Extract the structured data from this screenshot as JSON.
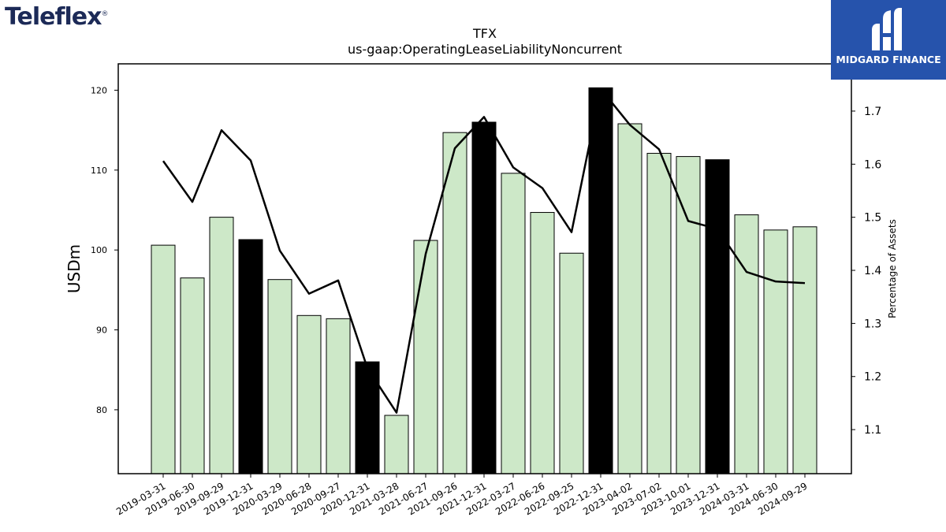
{
  "logos": {
    "left_brand": "Teleflex",
    "left_mark": "®",
    "right_brand": "MIDGARD FINANCE",
    "right_icon": "midgard-m-icon",
    "right_bg": "#2653ac",
    "left_color": "#1c2a57"
  },
  "chart_data": {
    "type": "bar",
    "title": "TFX",
    "subtitle": "us-gaap:OperatingLeaseLiabilityNoncurrent",
    "ylabel": "USDm",
    "y2label": "Percentage of Assets",
    "categories": [
      "2019-03-31",
      "2019-06-30",
      "2019-09-29",
      "2019-12-31",
      "2020-03-29",
      "2020-06-28",
      "2020-09-27",
      "2020-12-31",
      "2021-03-28",
      "2021-06-27",
      "2021-09-26",
      "2021-12-31",
      "2022-03-27",
      "2022-06-26",
      "2022-09-25",
      "2022-12-31",
      "2023-04-02",
      "2023-07-02",
      "2023-10-01",
      "2023-12-31",
      "2024-03-31",
      "2024-06-30",
      "2024-09-29"
    ],
    "series": [
      {
        "axis": "left",
        "type": "bar",
        "values": [
          100.6,
          96.5,
          104.1,
          101.3,
          96.3,
          91.8,
          91.4,
          86.0,
          79.3,
          101.2,
          114.7,
          116.0,
          109.6,
          104.7,
          99.6,
          120.3,
          115.8,
          112.1,
          111.7,
          111.3,
          104.4,
          102.5,
          102.9
        ],
        "highlight": [
          false,
          false,
          false,
          true,
          false,
          false,
          false,
          true,
          false,
          false,
          false,
          true,
          false,
          false,
          false,
          true,
          false,
          false,
          false,
          true,
          false,
          false,
          false
        ]
      },
      {
        "axis": "right",
        "type": "line",
        "values": [
          1.606,
          1.529,
          1.664,
          1.607,
          1.437,
          1.356,
          1.381,
          1.216,
          1.132,
          1.431,
          1.63,
          1.689,
          1.594,
          1.555,
          1.472,
          1.742,
          1.674,
          1.628,
          1.493,
          1.478,
          1.397,
          1.379,
          1.376
        ]
      }
    ],
    "ylim": [
      72,
      123.3
    ],
    "y2lim": [
      1.017,
      1.789
    ],
    "yticks": [
      80,
      90,
      100,
      110,
      120
    ],
    "y2ticks": [
      1.1,
      1.2,
      1.3,
      1.4,
      1.5,
      1.6,
      1.7
    ],
    "grid": false,
    "colors": {
      "bar": "#cde8c8",
      "highlight": "#000000",
      "line": "#000000"
    }
  }
}
